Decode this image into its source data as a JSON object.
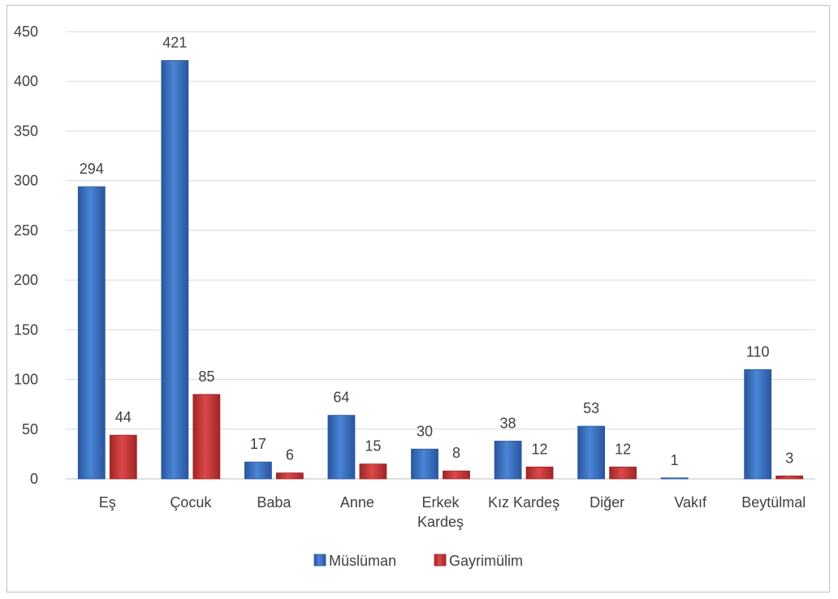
{
  "chart_data": {
    "type": "bar",
    "title": "",
    "xlabel": "",
    "ylabel": "",
    "ylim": [
      0,
      450
    ],
    "yticks": [
      0,
      50,
      100,
      150,
      200,
      250,
      300,
      350,
      400,
      450
    ],
    "grid": true,
    "legend_position": "bottom",
    "categories": [
      [
        "Eş"
      ],
      [
        "Çocuk"
      ],
      [
        "Baba"
      ],
      [
        "Anne"
      ],
      [
        "Erkek",
        "Kardeş"
      ],
      [
        "Kız Kardeş"
      ],
      [
        "Diğer"
      ],
      [
        "Vakıf"
      ],
      [
        "Beytülmal"
      ]
    ],
    "series": [
      {
        "name": "Müslüman",
        "color": "#3b6fc4",
        "values": [
          294,
          421,
          17,
          64,
          30,
          38,
          53,
          1,
          110
        ],
        "labels": [
          "294",
          "421",
          "17",
          "64",
          "30",
          "38",
          "53",
          "1",
          "110"
        ]
      },
      {
        "name": "Gayrimülim",
        "color": "#c8393a",
        "values": [
          44,
          85,
          6,
          15,
          8,
          12,
          12,
          0,
          3
        ],
        "labels": [
          "44",
          "85",
          "6",
          "15",
          "8",
          "12",
          "12",
          "",
          "3"
        ]
      }
    ]
  }
}
